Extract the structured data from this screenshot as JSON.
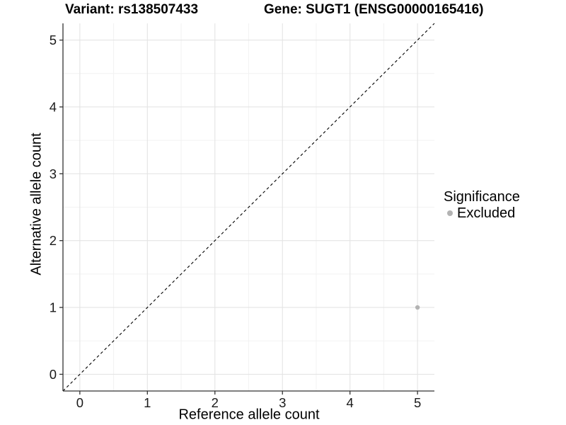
{
  "chart_data": {
    "type": "scatter",
    "titles": {
      "variant": "Variant: rs138507433",
      "gene": "Gene: SUGT1 (ENSG00000165416)"
    },
    "xlabel": "Reference allele count",
    "ylabel": "Alternative allele count",
    "xlim": [
      -0.25,
      5.25
    ],
    "ylim": [
      -0.25,
      5.25
    ],
    "xticks": [
      0,
      1,
      2,
      3,
      4,
      5
    ],
    "yticks": [
      0,
      1,
      2,
      3,
      4,
      5
    ],
    "xticks_minor": [
      0.5,
      1.5,
      2.5,
      3.5,
      4.5
    ],
    "yticks_minor": [
      0.5,
      1.5,
      2.5,
      3.5,
      4.5
    ],
    "grid": true,
    "series": [
      {
        "name": "Excluded",
        "color": "#b3b3b3",
        "points": [
          {
            "x": 5,
            "y": 1
          }
        ]
      }
    ],
    "reference_line": {
      "type": "identity",
      "style": "dashed",
      "color": "#000000",
      "from": [
        -0.25,
        -0.25
      ],
      "to": [
        5.25,
        5.25
      ]
    },
    "legend": {
      "title": "Significance",
      "position": "right"
    }
  },
  "colors": {
    "background": "#ffffff",
    "grid_major": "#e4e4e4",
    "grid_minor": "#f2f2f2",
    "axis": "#333333",
    "tick_text": "#1a1a1a",
    "point": "#b3b3b3"
  }
}
